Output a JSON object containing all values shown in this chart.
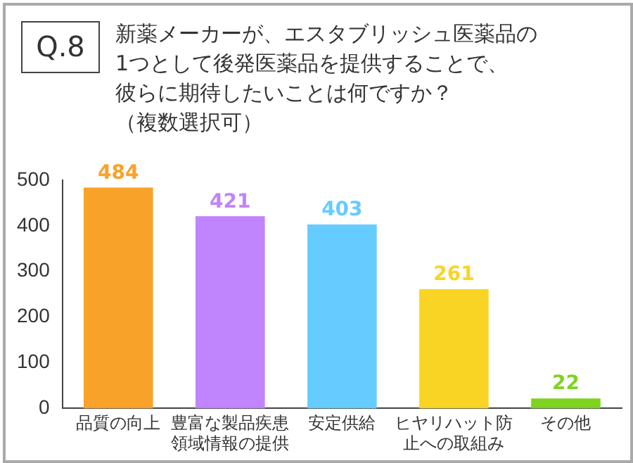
{
  "chart_data": {
    "type": "bar",
    "title": "新薬メーカーが、エスタブリッシュ医薬品の1つとして後発医薬品を提供することで、彼らに期待したいことは何ですか？",
    "subtitle": "（複数選択可）",
    "annotations": [
      "Q.8"
    ],
    "categories": [
      "品質の向上",
      "豊富な製品疾患領域情報の提供",
      "安定供給",
      "ヒヤリハット防止への取組み",
      "その他"
    ],
    "values": [
      484,
      421,
      403,
      261,
      22
    ],
    "colors": [
      "#f9a22a",
      "#c084fc",
      "#66ccff",
      "#fad424",
      "#7ed321"
    ],
    "ylim": [
      0,
      500
    ],
    "yticks": [
      0,
      100,
      200,
      300,
      400,
      500
    ],
    "grid": false,
    "legend": false,
    "data_labels": true
  }
}
